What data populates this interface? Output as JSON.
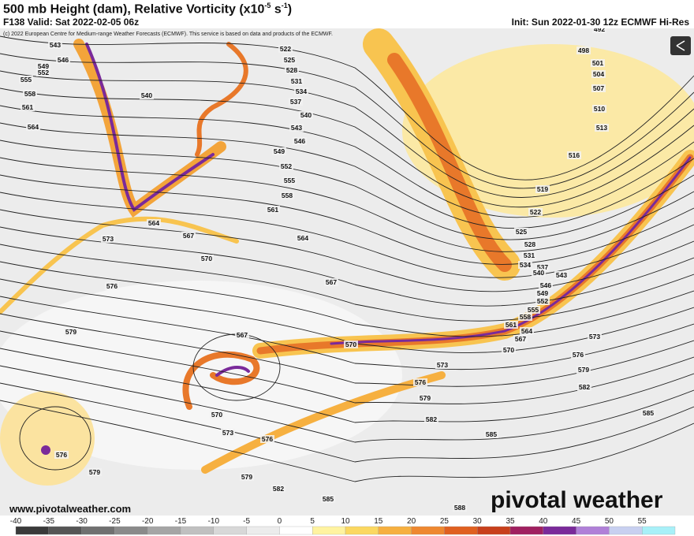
{
  "header": {
    "title": "500 mb Height (dam), Relative Vorticity (x10",
    "title_exp": "-5",
    "title_unit": " s",
    "title_unit_exp": "-1",
    "title_close": ")",
    "valid": "F138 Valid: Sat 2022-02-05 06z",
    "init": "Init: Sun 2022-01-30 12z ECMWF Hi-Res",
    "copyright": "(c) 2022 European Centre for Medium-range Weather Forecasts (ECMWF). This service is based on data and products of the ECMWF."
  },
  "contour_labels": [
    "543",
    "546",
    "549",
    "552",
    "555",
    "558",
    "561",
    "564",
    "540",
    "522",
    "525",
    "528",
    "531",
    "534",
    "537",
    "540",
    "543",
    "546",
    "549",
    "552",
    "555",
    "558",
    "561",
    "564",
    "567",
    "564",
    "573",
    "570",
    "576",
    "567",
    "579",
    "567",
    "570",
    "573",
    "576",
    "579",
    "582",
    "585",
    "576",
    "579",
    "570",
    "573",
    "576",
    "579",
    "582",
    "585",
    "588",
    "498",
    "501",
    "504",
    "507",
    "510",
    "513",
    "516",
    "519",
    "522",
    "525",
    "528",
    "531",
    "534",
    "537",
    "540",
    "543",
    "546",
    "549",
    "552",
    "555",
    "558",
    "561",
    "564",
    "567",
    "570",
    "573",
    "576",
    "579",
    "582",
    "585",
    "492"
  ],
  "footer": {
    "website": "www.pivotalweather.com",
    "logo": "pivotal weather"
  },
  "colorbar": {
    "labels": [
      -40,
      -35,
      -30,
      -25,
      -20,
      -15,
      -10,
      -5,
      0,
      5,
      10,
      15,
      20,
      25,
      30,
      35,
      40,
      45,
      50,
      55
    ]
  }
}
